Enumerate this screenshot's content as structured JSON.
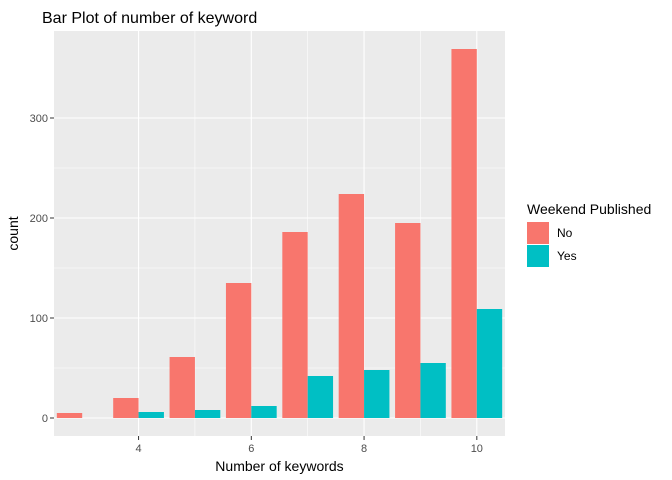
{
  "chart_data": {
    "type": "bar",
    "title": "Bar Plot of number of keyword",
    "xlabel": "Number of keywords",
    "ylabel": "count",
    "x": [
      3,
      4,
      5,
      6,
      7,
      8,
      9,
      10
    ],
    "series": [
      {
        "name": "No",
        "color": "#F8766D",
        "values": [
          5,
          20,
          61,
          135,
          186,
          224,
          195,
          369
        ]
      },
      {
        "name": "Yes",
        "color": "#00BFC4",
        "values": [
          0,
          6,
          8,
          12,
          42,
          48,
          55,
          109
        ]
      }
    ],
    "xlim": [
      2.5,
      10.5
    ],
    "ylim": [
      -18,
      387
    ],
    "xticks": [
      4,
      6,
      8,
      10
    ],
    "yticks": [
      0,
      100,
      200,
      300
    ],
    "grid": true,
    "position": "dodge",
    "legend": {
      "title": "Weekend Published",
      "placement": "right"
    },
    "colors": {
      "panel": "#EBEBEB",
      "grid": "#FFFFFF"
    }
  }
}
